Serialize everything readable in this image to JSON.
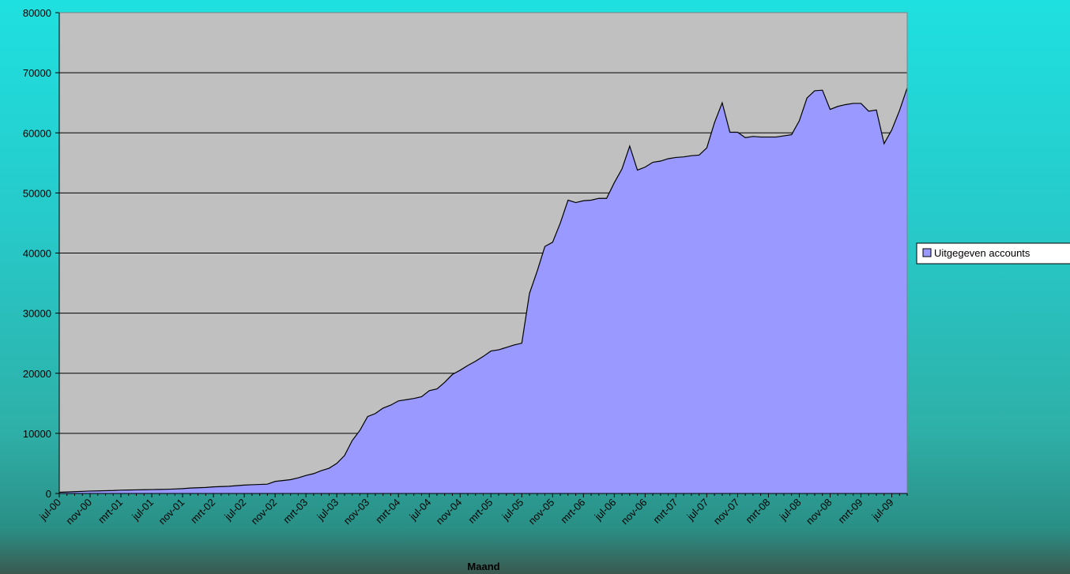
{
  "chart_data": {
    "type": "area",
    "categories": [
      "jul-00",
      null,
      null,
      null,
      "nov-00",
      null,
      null,
      null,
      "mrt-01",
      null,
      null,
      null,
      "jul-01",
      null,
      null,
      null,
      "nov-01",
      null,
      null,
      null,
      "mrt-02",
      null,
      null,
      null,
      "jul-02",
      null,
      null,
      null,
      "nov-02",
      null,
      null,
      null,
      "mrt-03",
      null,
      null,
      null,
      "jul-03",
      null,
      null,
      null,
      "nov-03",
      null,
      null,
      null,
      "mrt-04",
      null,
      null,
      null,
      "jul-04",
      null,
      null,
      null,
      "nov-04",
      null,
      null,
      null,
      "mrt-05",
      null,
      null,
      null,
      "jul-05",
      null,
      null,
      null,
      "nov-05",
      null,
      null,
      null,
      "mrt-06",
      null,
      null,
      null,
      "jul-06",
      null,
      null,
      null,
      "nov-06",
      null,
      null,
      null,
      "mrt-07",
      null,
      null,
      null,
      "jul-07",
      null,
      null,
      null,
      "nov-07",
      null,
      null,
      null,
      "mrt-08",
      null,
      null,
      null,
      "jul-08",
      null,
      null,
      null,
      "nov-08",
      null,
      null,
      null,
      "mrt-09",
      null,
      null,
      null,
      "jul-09",
      null,
      null
    ],
    "series": [
      {
        "name": "Uitgegeven accounts",
        "color": "#9999ff",
        "values": [
          200,
          250,
          300,
          350,
          400,
          430,
          460,
          490,
          550,
          570,
          600,
          620,
          650,
          670,
          700,
          750,
          800,
          900,
          950,
          1000,
          1100,
          1150,
          1200,
          1300,
          1400,
          1450,
          1500,
          1550,
          2000,
          2150,
          2300,
          2600,
          3000,
          3300,
          3800,
          4200,
          5000,
          6300,
          8800,
          10500,
          12800,
          13300,
          14200,
          14700,
          15400,
          15600,
          15800,
          16100,
          17100,
          17400,
          18500,
          19800,
          20500,
          21300,
          22000,
          22800,
          23700,
          23900,
          24300,
          24700,
          25000,
          33300,
          37000,
          41100,
          41800,
          45000,
          48800,
          48400,
          48700,
          48800,
          49100,
          49100,
          51700,
          54000,
          57800,
          53800,
          54300,
          55100,
          55300,
          55700,
          55900,
          56000,
          56200,
          56300,
          57500,
          61700,
          65000,
          60100,
          60100,
          59200,
          59400,
          59300,
          59300,
          59300,
          59500,
          59700,
          62000,
          65800,
          67000,
          67100,
          63900,
          64400,
          64700,
          64900,
          64900,
          63600,
          63800,
          58200,
          60500,
          63700,
          67500
        ]
      }
    ],
    "xlabel": "Maand",
    "ylim": [
      0,
      80000
    ],
    "yticks": [
      0,
      10000,
      20000,
      30000,
      40000,
      50000,
      60000,
      70000,
      80000
    ],
    "grid": true,
    "legend": "right",
    "plot_background": "#c0c0c0"
  }
}
